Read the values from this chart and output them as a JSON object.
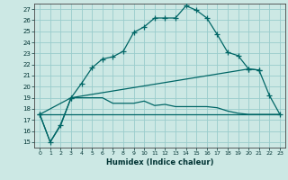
{
  "title": "",
  "xlabel": "Humidex (Indice chaleur)",
  "background_color": "#cce8e4",
  "grid_color": "#99cccc",
  "line_color": "#006666",
  "xlim": [
    -0.5,
    23.5
  ],
  "ylim": [
    14.5,
    27.5
  ],
  "xticks": [
    0,
    1,
    2,
    3,
    4,
    5,
    6,
    7,
    8,
    9,
    10,
    11,
    12,
    13,
    14,
    15,
    16,
    17,
    18,
    19,
    20,
    21,
    22,
    23
  ],
  "yticks": [
    15,
    16,
    17,
    18,
    19,
    20,
    21,
    22,
    23,
    24,
    25,
    26,
    27
  ],
  "line1_x": [
    0,
    1,
    2,
    3,
    4,
    5,
    6,
    7,
    8,
    9,
    10,
    11,
    12,
    13,
    14,
    15,
    16,
    17,
    18,
    19,
    20,
    21
  ],
  "line1_y": [
    17.5,
    15.0,
    16.5,
    19.0,
    20.3,
    21.7,
    22.5,
    22.7,
    23.2,
    24.9,
    25.4,
    26.2,
    26.2,
    26.2,
    27.3,
    26.9,
    26.2,
    24.7,
    23.1,
    22.8,
    21.6,
    21.5
  ],
  "line2_x": [
    0,
    1,
    2,
    3,
    4,
    5,
    6,
    7,
    8,
    9,
    10,
    11,
    12,
    13,
    14,
    15,
    16,
    17,
    18,
    19,
    20,
    21,
    22,
    23
  ],
  "line2_y": [
    17.5,
    15.0,
    16.6,
    19.0,
    19.0,
    19.0,
    19.0,
    18.5,
    18.5,
    18.5,
    18.7,
    18.3,
    18.4,
    18.2,
    18.2,
    18.2,
    18.2,
    18.1,
    17.8,
    17.6,
    17.5,
    17.5,
    17.5,
    17.5
  ],
  "line3_x": [
    0,
    3,
    20,
    21,
    22,
    23
  ],
  "line3_y": [
    17.5,
    19.0,
    21.6,
    21.5,
    19.2,
    17.5
  ],
  "line4_x": [
    0,
    23
  ],
  "line4_y": [
    17.5,
    17.5
  ]
}
